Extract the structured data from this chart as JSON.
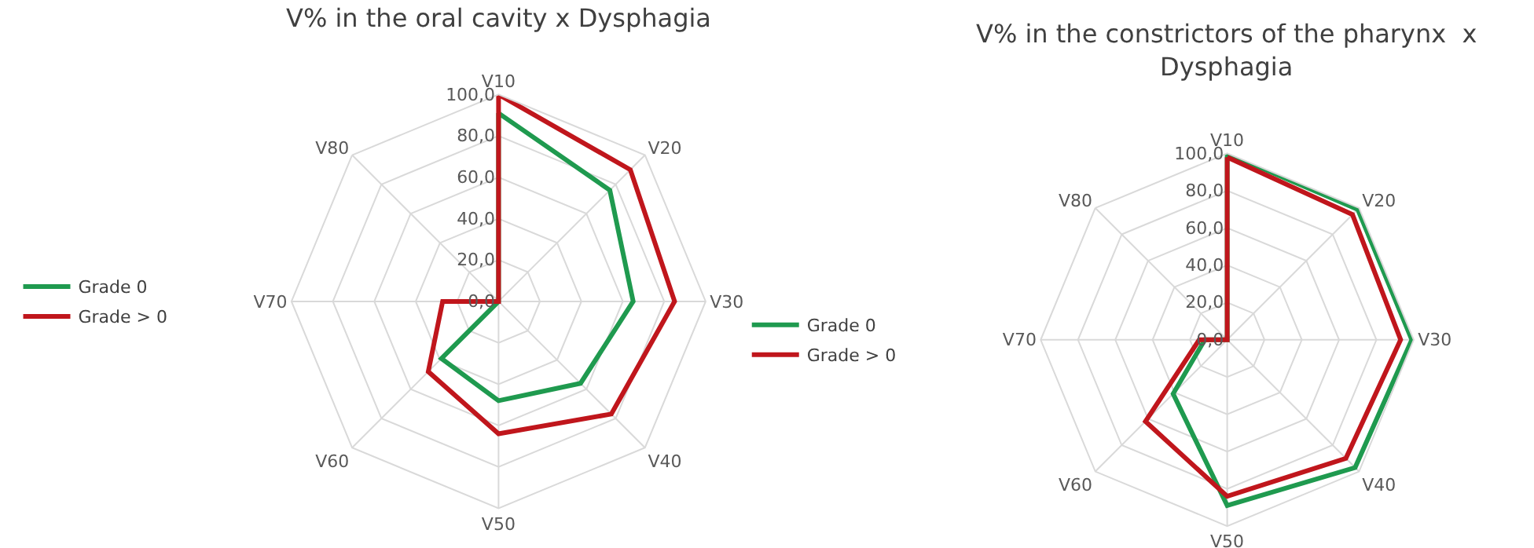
{
  "chart_data": [
    {
      "type": "radar",
      "title": "V% in the oral cavity x Dysphagia",
      "categories": [
        "V10",
        "V20",
        "V30",
        "V40",
        "V50",
        "V60",
        "V70",
        "V80"
      ],
      "series": [
        {
          "name": "Grade 0",
          "color": "#1f9a4f",
          "values": [
            91,
            76,
            65,
            56,
            48,
            39,
            0,
            0
          ]
        },
        {
          "name": "Grade > 0",
          "color": "#c0161c",
          "values": [
            100,
            90,
            85,
            77,
            64,
            48,
            27,
            0
          ]
        }
      ],
      "ylim": [
        0,
        100
      ],
      "yticks": [
        {
          "value": 0,
          "label": "0,0"
        },
        {
          "value": 20,
          "label": "20,0"
        },
        {
          "value": 40,
          "label": "40,0"
        },
        {
          "value": 60,
          "label": "60,0"
        },
        {
          "value": 80,
          "label": "80,0"
        },
        {
          "value": 100,
          "label": "100,0"
        }
      ],
      "grid": true,
      "legend": "left",
      "line_style": "solid",
      "marker": "none"
    },
    {
      "type": "radar",
      "title": "V% in the constrictors of the pharynx  x Dysphagia",
      "categories": [
        "V10",
        "V20",
        "V30",
        "V40",
        "V50",
        "V60",
        "V70",
        "V80"
      ],
      "series": [
        {
          "name": "Grade 0",
          "color": "#1f9a4f",
          "values": [
            100,
            99,
            99,
            97,
            89,
            41,
            12,
            0
          ]
        },
        {
          "name": "Grade > 0",
          "color": "#c0161c",
          "values": [
            98,
            95,
            93,
            90,
            84,
            62,
            15,
            0
          ]
        }
      ],
      "ylim": [
        0,
        100
      ],
      "yticks": [
        {
          "value": 0,
          "label": "0,0"
        },
        {
          "value": 20,
          "label": "20,0"
        },
        {
          "value": 40,
          "label": "40,0"
        },
        {
          "value": 60,
          "label": "60,0"
        },
        {
          "value": 80,
          "label": "80,0"
        },
        {
          "value": 100,
          "label": "100,0"
        }
      ],
      "grid": true,
      "legend": "left",
      "line_style": "solid",
      "marker": "none"
    }
  ]
}
